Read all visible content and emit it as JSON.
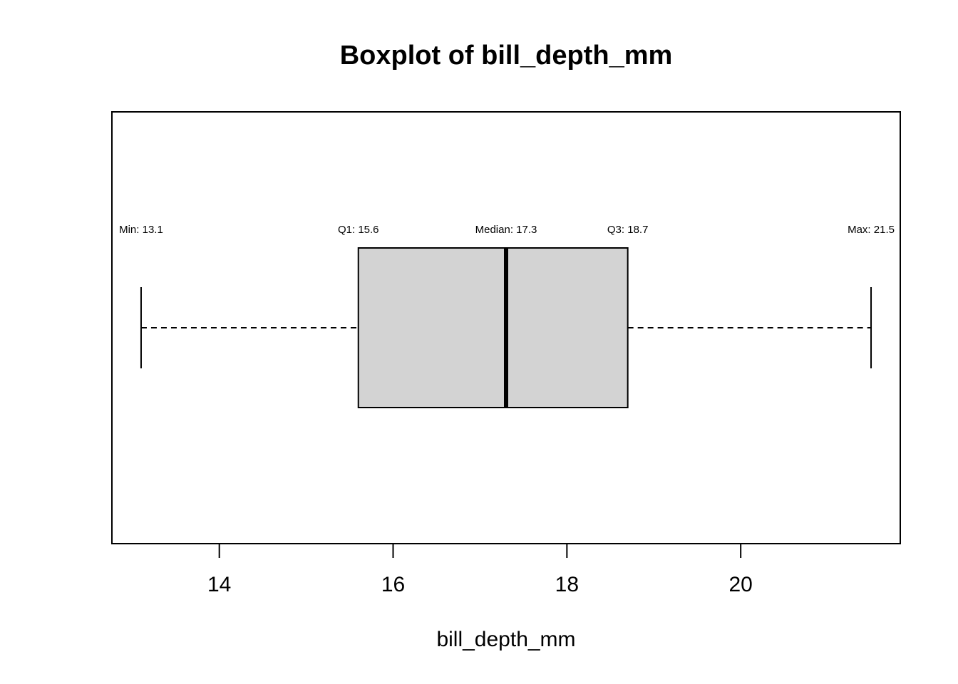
{
  "chart_data": {
    "type": "boxplot",
    "title": "Boxplot of bill_depth_mm",
    "xlabel": "bill_depth_mm",
    "values": [
      13.1,
      15.6,
      17.3,
      18.7,
      21.5
    ],
    "value_labels": [
      "Min: 13.1",
      "Q1: 15.6",
      "Median: 17.3",
      "Q3: 18.7",
      "Max: 21.5"
    ],
    "color": "#d3d3d3",
    "xlim": [
      12.764,
      21.836
    ],
    "xticks": [
      14,
      16,
      18,
      20
    ]
  }
}
